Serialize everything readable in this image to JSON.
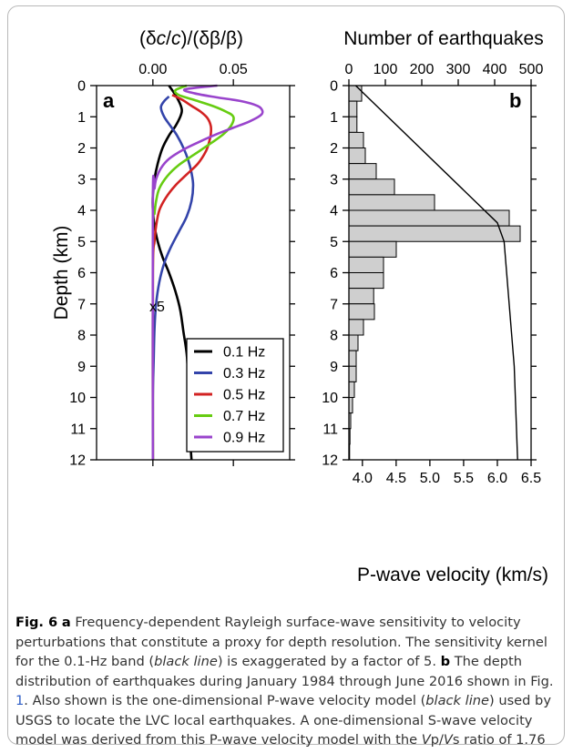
{
  "chart_data": [
    {
      "panel": "a",
      "type": "line",
      "xlabel": "(δc/c)/(δβ/β)",
      "ylabel": "Depth (km)",
      "x_ticks": [
        "0.00",
        "0.05"
      ],
      "y_ticks": [
        "0",
        "1",
        "2",
        "3",
        "4",
        "5",
        "6",
        "7",
        "8",
        "9",
        "10",
        "11",
        "12"
      ],
      "xlim": [
        -0.035,
        0.085
      ],
      "ylim": [
        0,
        12
      ],
      "annotation": "x5",
      "legend_position": "bottom-right",
      "series": [
        {
          "name": "0.1 Hz",
          "color": "#000000",
          "points": [
            [
              0.01,
              0.0
            ],
            [
              0.014,
              0.3
            ],
            [
              0.017,
              0.6
            ],
            [
              0.018,
              0.8
            ],
            [
              0.017,
              1.0
            ],
            [
              0.014,
              1.3
            ],
            [
              0.01,
              1.6
            ],
            [
              0.006,
              2.0
            ],
            [
              0.003,
              2.5
            ],
            [
              0.001,
              3.0
            ],
            [
              0.0,
              3.5
            ],
            [
              0.0,
              4.0
            ],
            [
              0.001,
              4.5
            ],
            [
              0.003,
              5.0
            ],
            [
              0.006,
              5.5
            ],
            [
              0.01,
              6.0
            ],
            [
              0.014,
              6.6
            ],
            [
              0.017,
              7.2
            ],
            [
              0.019,
              7.9
            ],
            [
              0.021,
              8.6
            ],
            [
              0.022,
              9.4
            ],
            [
              0.023,
              10.3
            ],
            [
              0.023,
              11.2
            ],
            [
              0.024,
              12.0
            ]
          ]
        },
        {
          "name": "0.3 Hz",
          "color": "#3344aa",
          "points": [
            [
              0.01,
              0.35
            ],
            [
              0.007,
              0.5
            ],
            [
              0.005,
              0.7
            ],
            [
              0.007,
              1.0
            ],
            [
              0.011,
              1.3
            ],
            [
              0.015,
              1.6
            ],
            [
              0.019,
              2.0
            ],
            [
              0.022,
              2.4
            ],
            [
              0.024,
              2.8
            ],
            [
              0.025,
              3.2
            ],
            [
              0.024,
              3.7
            ],
            [
              0.021,
              4.2
            ],
            [
              0.016,
              4.7
            ],
            [
              0.011,
              5.2
            ],
            [
              0.007,
              5.7
            ],
            [
              0.004,
              6.3
            ],
            [
              0.002,
              7.0
            ],
            [
              0.001,
              7.8
            ],
            [
              0.0005,
              8.8
            ],
            [
              0.0,
              10.0
            ],
            [
              0.0,
              12.0
            ]
          ]
        },
        {
          "name": "0.5 Hz",
          "color": "#d22222",
          "points": [
            [
              0.012,
              0.3
            ],
            [
              0.018,
              0.45
            ],
            [
              0.024,
              0.65
            ],
            [
              0.03,
              0.85
            ],
            [
              0.034,
              1.05
            ],
            [
              0.036,
              1.3
            ],
            [
              0.036,
              1.55
            ],
            [
              0.035,
              1.8
            ],
            [
              0.033,
              2.1
            ],
            [
              0.028,
              2.5
            ],
            [
              0.021,
              2.85
            ],
            [
              0.014,
              3.2
            ],
            [
              0.008,
              3.6
            ],
            [
              0.004,
              4.0
            ],
            [
              0.002,
              4.5
            ],
            [
              0.001,
              5.0
            ],
            [
              0.0,
              6.0
            ],
            [
              0.0,
              12.0
            ]
          ]
        },
        {
          "name": "0.7 Hz",
          "color": "#66cc11",
          "points": [
            [
              0.021,
              0.0
            ],
            [
              0.014,
              0.15
            ],
            [
              0.016,
              0.3
            ],
            [
              0.025,
              0.45
            ],
            [
              0.037,
              0.65
            ],
            [
              0.046,
              0.85
            ],
            [
              0.05,
              1.0
            ],
            [
              0.049,
              1.25
            ],
            [
              0.044,
              1.55
            ],
            [
              0.036,
              1.85
            ],
            [
              0.026,
              2.2
            ],
            [
              0.016,
              2.55
            ],
            [
              0.009,
              2.9
            ],
            [
              0.004,
              3.3
            ],
            [
              0.002,
              3.7
            ],
            [
              0.001,
              4.1
            ],
            [
              0.0,
              4.6
            ],
            [
              0.0,
              12.0
            ]
          ]
        },
        {
          "name": "0.9 Hz",
          "color": "#9944cc",
          "points": [
            [
              0.04,
              0.0
            ],
            [
              0.02,
              0.12
            ],
            [
              0.026,
              0.25
            ],
            [
              0.04,
              0.38
            ],
            [
              0.055,
              0.5
            ],
            [
              0.065,
              0.65
            ],
            [
              0.068,
              0.8
            ],
            [
              0.067,
              0.95
            ],
            [
              0.06,
              1.15
            ],
            [
              0.05,
              1.35
            ],
            [
              0.04,
              1.55
            ],
            [
              0.029,
              1.8
            ],
            [
              0.019,
              2.05
            ],
            [
              0.01,
              2.35
            ],
            [
              0.005,
              2.65
            ],
            [
              0.002,
              3.0
            ],
            [
              0.001,
              3.3
            ],
            [
              0.0,
              3.6
            ],
            [
              0.0,
              12.0
            ]
          ]
        }
      ]
    },
    {
      "panel": "b",
      "type": "bar",
      "orientation": "horizontal",
      "xlabel_top": "Number of earthquakes",
      "xlabel_bottom": "P-wave velocity (km/s)",
      "top_ticks": [
        "0",
        "100",
        "200",
        "300",
        "400",
        "500"
      ],
      "bottom_ticks": [
        "4.0",
        "4.5",
        "5.0",
        "5.5",
        "6.0",
        "6.5"
      ],
      "xlim_count": [
        0,
        500
      ],
      "xlim_velocity": [
        3.8,
        6.5
      ],
      "ylim": [
        0,
        12
      ],
      "bar_color": "#cfcfcf",
      "bins_depth_km": [
        [
          0,
          0.5
        ],
        [
          0.5,
          1
        ],
        [
          1,
          1.5
        ],
        [
          1.5,
          2
        ],
        [
          2,
          2.5
        ],
        [
          2.5,
          3
        ],
        [
          3,
          3.5
        ],
        [
          3.5,
          4
        ],
        [
          4,
          4.5
        ],
        [
          4.5,
          5
        ],
        [
          5,
          5.5
        ],
        [
          5.5,
          6
        ],
        [
          6,
          6.5
        ],
        [
          6.5,
          7
        ],
        [
          7,
          7.5
        ],
        [
          7.5,
          8
        ],
        [
          8,
          8.5
        ],
        [
          8.5,
          9
        ],
        [
          9,
          9.5
        ],
        [
          9.5,
          10
        ],
        [
          10,
          10.5
        ],
        [
          10.5,
          11
        ],
        [
          11,
          11.5
        ],
        [
          11.5,
          12
        ]
      ],
      "counts": [
        35,
        22,
        22,
        40,
        45,
        75,
        125,
        235,
        440,
        470,
        130,
        95,
        95,
        68,
        70,
        40,
        25,
        20,
        20,
        15,
        10,
        5,
        3,
        2
      ],
      "velocity_model": {
        "depth_km": [
          0,
          4.4,
          5.0,
          9.0,
          12.0
        ],
        "vp_km_s": [
          3.9,
          6.0,
          6.1,
          6.25,
          6.3
        ]
      }
    }
  ],
  "caption": {
    "label_fig": "Fig. 6",
    "lbl_a": "a",
    "text_a": " Frequency-dependent Rayleigh surface-wave sensitivity to velocity perturbations that constitute a proxy for depth resolution. The sensitivity kernel for the 0.1-Hz band (",
    "black_line": "black line",
    "text_a2": ") is exaggerated by a factor of 5. ",
    "lbl_b": "b",
    "text_b": " The depth distribution of earthquakes during January 1984 through June 2016 shown in Fig. ",
    "fig_ref": "1",
    "text_b2": ". Also shown is the one-dimensional P-wave velocity model (",
    "black_line2": "black line",
    "text_b3": ") used by USGS to locate the LVC local earthquakes. A one-dimensional S-wave velocity model was derived from this P-wave velocity model with the ",
    "vp": "V",
    "vp_sub": "p",
    "slash": "/",
    "vs": "V",
    "vs_sub": "s",
    "text_end": " ratio of 1.76"
  }
}
